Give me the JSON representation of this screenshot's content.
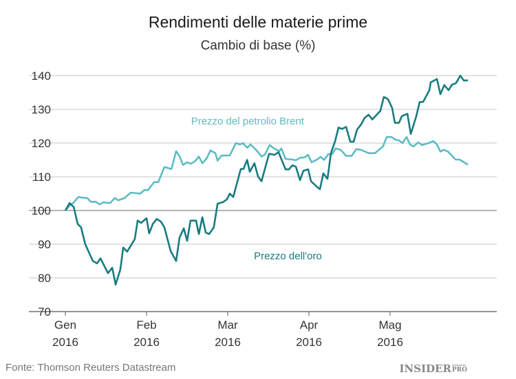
{
  "chart_data": {
    "type": "line",
    "title": "Rendimenti delle materie prime",
    "subtitle": "Cambio di base (%)",
    "xlabel": "",
    "ylabel": "",
    "x_unit": "days since 1 Jan 2016",
    "ylim": [
      70,
      145
    ],
    "xlim": [
      0,
      164.7
    ],
    "grid": true,
    "baseline": 100,
    "yticks": [
      70,
      80,
      90,
      100,
      110,
      120,
      130,
      140
    ],
    "xticks": [
      {
        "day": 0,
        "label1": "Gen",
        "label2": "2016"
      },
      {
        "day": 31,
        "label1": "Feb",
        "label2": "2016"
      },
      {
        "day": 62,
        "label1": "Mar",
        "label2": "2016"
      },
      {
        "day": 93,
        "label1": "Apr",
        "label2": "2016"
      },
      {
        "day": 124,
        "label1": "Mag",
        "label2": "2016"
      }
    ],
    "series": [
      {
        "name": "Prezzo del petrolio Brent",
        "color": "#5cbcc4",
        "x": [
          0,
          1.6,
          3.2,
          5,
          6.6,
          8.4,
          9.7,
          11.6,
          13.1,
          14.4,
          17.1,
          18.9,
          20.2,
          22.6,
          25,
          28.6,
          30.2,
          31.5,
          33.9,
          35.5,
          37.8,
          40.5,
          42.3,
          43.6,
          44.9,
          46.5,
          47.8,
          49.4,
          51,
          52.3,
          53.9,
          55.4,
          57.3,
          58.1,
          59.6,
          62.8,
          65.1,
          66.7,
          67.8,
          69.4,
          70.7,
          73.3,
          74.9,
          76.2,
          78,
          79.3,
          81.7,
          82.5,
          84.1,
          86.7,
          88,
          89.8,
          91.2,
          92.7,
          94,
          96.1,
          97.5,
          98.8,
          100.4,
          101.9,
          103.2,
          105.1,
          107.2,
          109.3,
          111.1,
          112.9,
          115.8,
          118.2,
          121.3,
          122.7,
          124.5,
          126.1,
          127.4,
          128.7,
          130.3,
          131.6,
          132.9,
          134.8,
          136.1,
          138.7,
          140.5,
          141.9,
          143.2,
          144.5,
          146.1,
          149,
          150.5,
          153.7
        ],
        "values": [
          100,
          101.4,
          102.4,
          104,
          103.8,
          103.7,
          102.6,
          102.6,
          101.8,
          102.4,
          102.2,
          103.7,
          103,
          103.7,
          105.3,
          105,
          106.1,
          106,
          108.4,
          108.4,
          112.9,
          112.3,
          117.6,
          116.1,
          113.5,
          114.3,
          113.9,
          114.5,
          116,
          114,
          115.4,
          117.8,
          117,
          114.8,
          116.3,
          116.3,
          120,
          119.6,
          120,
          118.6,
          119.6,
          117.6,
          116,
          116.6,
          119.4,
          118.6,
          117.6,
          118.4,
          115.3,
          115.1,
          114.9,
          115.7,
          115.7,
          116.5,
          114.3,
          115.1,
          115.9,
          115,
          116.7,
          116.7,
          118.4,
          118,
          116.2,
          116.2,
          118.2,
          118,
          117,
          117,
          119,
          121.8,
          121.8,
          121,
          120.8,
          120,
          121.8,
          119.6,
          119,
          120.2,
          119.4,
          120,
          120.6,
          119.6,
          117.5,
          118,
          117.5,
          115.1,
          115.1,
          113.6
        ],
        "label_anchor_day": 48,
        "label_anchor_value": 125.5
      },
      {
        "name": "Prezzo dell'oro",
        "color": "#177b80",
        "x": [
          0,
          1.6,
          3.2,
          4.7,
          6,
          7.6,
          10.5,
          12.1,
          13.4,
          16.3,
          17.9,
          19.2,
          21,
          22.1,
          23.6,
          26.5,
          27.6,
          28.9,
          31,
          32,
          33.4,
          34.9,
          36.5,
          37.8,
          40.2,
          42.3,
          43.6,
          45.2,
          46.5,
          47.8,
          49.9,
          51,
          52.3,
          53.6,
          54.9,
          56.7,
          58.1,
          60.2,
          61.7,
          62.8,
          64.1,
          67,
          68,
          69.4,
          70.4,
          72.2,
          73.6,
          74.9,
          77.8,
          79.9,
          81.4,
          84.1,
          85.4,
          86.7,
          88,
          89.6,
          90.9,
          92.7,
          93.8,
          96.1,
          97.2,
          98.5,
          100.1,
          101.4,
          103,
          104.3,
          105.6,
          107.2,
          108.8,
          110.1,
          111.4,
          112.9,
          114.3,
          115.8,
          117.2,
          120.3,
          121.6,
          123.2,
          124.8,
          125.8,
          127.4,
          128.5,
          130.6,
          131.9,
          134,
          135.3,
          136.6,
          139,
          139.5,
          141.9,
          143.2,
          144.7,
          146.3,
          147.6,
          149.2,
          150.8,
          152.1,
          153.7
        ],
        "values": [
          100,
          102.2,
          101,
          96,
          95,
          90,
          85,
          84.3,
          85.8,
          81.4,
          83,
          78,
          82.5,
          89,
          87.8,
          91.5,
          97,
          96.3,
          97.7,
          93.2,
          96,
          97.5,
          96.7,
          95,
          88,
          85,
          92,
          94.7,
          91,
          97,
          97,
          93,
          98,
          93.5,
          93,
          95,
          102,
          102.5,
          103.3,
          105,
          104,
          112.3,
          112.3,
          115,
          111.5,
          114,
          110,
          108.7,
          116.8,
          116.5,
          117.3,
          112.2,
          112.2,
          113.4,
          113,
          109,
          111.8,
          112.2,
          108.7,
          107,
          106.3,
          111,
          109.4,
          117,
          120.6,
          124.6,
          124.2,
          124.8,
          120.4,
          120.4,
          124,
          125.5,
          127.5,
          128.4,
          127,
          129.6,
          133.7,
          133,
          130.4,
          126,
          126,
          128,
          128.7,
          122.7,
          128,
          132.2,
          132.2,
          135.7,
          138,
          139,
          134.5,
          137.2,
          135.7,
          137.3,
          137.8,
          140,
          138.6,
          138.6
        ],
        "label_anchor_day": 72,
        "label_anchor_value": 85.5
      }
    ],
    "source": "Fonte: Thomson Reuters Datastream",
    "logo": "INSIDER PRO"
  }
}
